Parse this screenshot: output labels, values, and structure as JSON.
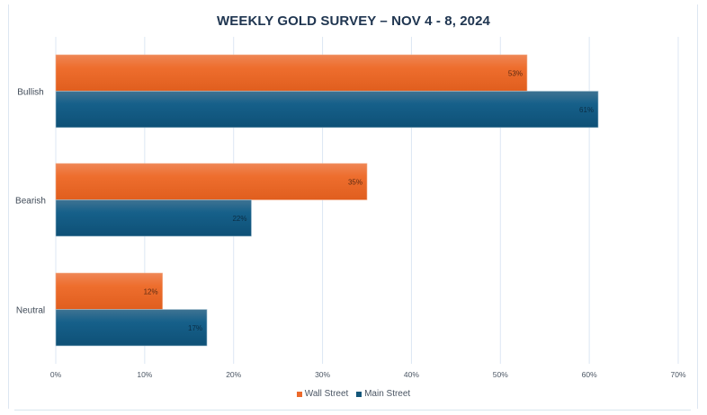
{
  "chart_data": {
    "type": "bar",
    "orientation": "horizontal",
    "title": "WEEKLY GOLD SURVEY – NOV 4 - 8, 2024",
    "categories": [
      "Bullish",
      "Bearish",
      "Neutral"
    ],
    "series": [
      {
        "name": "Wall Street",
        "values": [
          53,
          35,
          12
        ],
        "labels": [
          "53%",
          "35%",
          "12%"
        ],
        "color": "#ec6a2c"
      },
      {
        "name": "Main Street",
        "values": [
          61,
          22,
          17
        ],
        "labels": [
          "61%",
          "22%",
          "17%"
        ],
        "color": "#14577a"
      }
    ],
    "xlabel": "",
    "ylabel": "",
    "xlim": [
      0,
      70
    ],
    "xticks": [
      0,
      10,
      20,
      30,
      40,
      50,
      60,
      70
    ],
    "xtick_labels": [
      "0%",
      "10%",
      "20%",
      "30%",
      "40%",
      "50%",
      "60%",
      "70%"
    ],
    "grid": "vertical",
    "legend_position": "bottom"
  }
}
